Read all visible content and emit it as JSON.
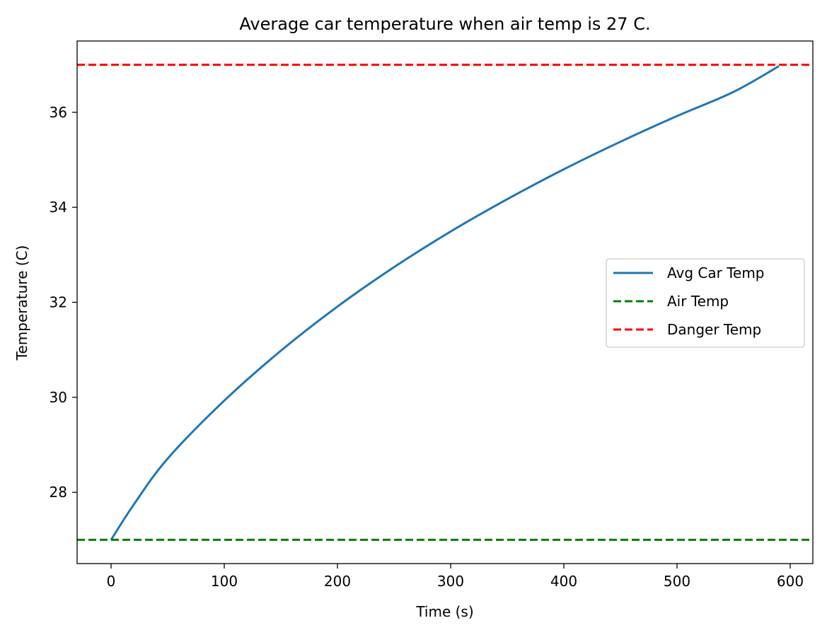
{
  "chart_data": {
    "type": "line",
    "title": "Average car temperature when air temp is 27 C.",
    "xlabel": "Time (s)",
    "ylabel": "Temperature (C)",
    "xlim": [
      -30,
      620
    ],
    "ylim": [
      26.5,
      37.5
    ],
    "xticks": [
      0,
      100,
      200,
      300,
      400,
      500,
      600
    ],
    "yticks": [
      28,
      30,
      32,
      34,
      36
    ],
    "grid": false,
    "legend_position": "center-right",
    "series": [
      {
        "name": "Avg Car Temp",
        "style": "solid",
        "color": "#1f77b4",
        "x": [
          0,
          20,
          50,
          100,
          150,
          200,
          250,
          300,
          350,
          400,
          450,
          500,
          550,
          590
        ],
        "y": [
          27.0,
          27.74,
          28.71,
          29.93,
          30.98,
          31.91,
          32.74,
          33.49,
          34.17,
          34.8,
          35.38,
          35.92,
          36.43,
          36.97
        ]
      },
      {
        "name": "Air Temp",
        "style": "dashed",
        "color": "#008000",
        "hline": 27
      },
      {
        "name": "Danger Temp",
        "style": "dashed",
        "color": "#ff0000",
        "hline": 37
      }
    ]
  }
}
